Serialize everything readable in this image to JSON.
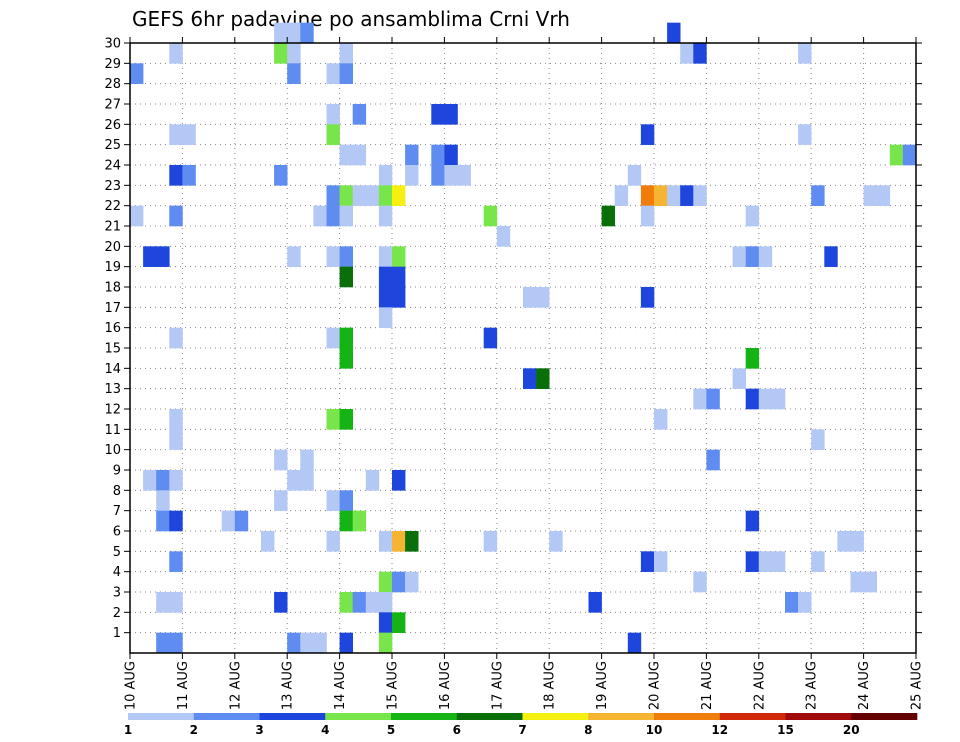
{
  "chart_data": {
    "type": "heatmap",
    "title": "GEFS 6hr padavine po ansamblima Crni Vrh",
    "y_ticks": [
      "1",
      "2",
      "3",
      "4",
      "5",
      "6",
      "7",
      "8",
      "9",
      "10",
      "11",
      "12",
      "13",
      "14",
      "15",
      "16",
      "17",
      "18",
      "19",
      "20",
      "21",
      "22",
      "23",
      "24",
      "25",
      "26",
      "27",
      "28",
      "29",
      "30"
    ],
    "ylim": [
      0,
      30
    ],
    "x_ticks": [
      "10 AUG",
      "11 AUG",
      "12 AUG",
      "13 AUG",
      "14 AUG",
      "15 AUG",
      "16 AUG",
      "17 AUG",
      "18 AUG",
      "19 AUG",
      "20 AUG",
      "21 AUG",
      "22 AUG",
      "23 AUG",
      "24 AUG",
      "25 AUG"
    ],
    "xlim": [
      0,
      60
    ],
    "grid": true,
    "colorbar": {
      "levels": [
        "1",
        "2",
        "3",
        "4",
        "5",
        "6",
        "7",
        "8",
        "10",
        "12",
        "15",
        "20"
      ],
      "colors": [
        "#b4c8f5",
        "#5f8cf0",
        "#1e46dc",
        "#78e64b",
        "#14b414",
        "#0a6e0a",
        "#f5f00f",
        "#f5b432",
        "#f07d0a",
        "#d2280a",
        "#a00a0a",
        "#640000"
      ]
    },
    "cells": [
      [
        0,
        28,
        2
      ],
      [
        0,
        21,
        1
      ],
      [
        1,
        8,
        1
      ],
      [
        1,
        19,
        3
      ],
      [
        2,
        19,
        3
      ],
      [
        2,
        8,
        2
      ],
      [
        2,
        7,
        1
      ],
      [
        2,
        6,
        2
      ],
      [
        2,
        2,
        1
      ],
      [
        2,
        0,
        2
      ],
      [
        3,
        29,
        1
      ],
      [
        3,
        25,
        1
      ],
      [
        3,
        15,
        1
      ],
      [
        3,
        23,
        3
      ],
      [
        3,
        21,
        2
      ],
      [
        3,
        11,
        1
      ],
      [
        3,
        10,
        1
      ],
      [
        3,
        8,
        1
      ],
      [
        3,
        6,
        3
      ],
      [
        3,
        4,
        2
      ],
      [
        3,
        2,
        1
      ],
      [
        3,
        0,
        2
      ],
      [
        4,
        25,
        1
      ],
      [
        4,
        23,
        2
      ],
      [
        7,
        6,
        1
      ],
      [
        8,
        6,
        2
      ],
      [
        10,
        5,
        1
      ],
      [
        11,
        30,
        1
      ],
      [
        11,
        29,
        4
      ],
      [
        11,
        23,
        2
      ],
      [
        11,
        9,
        1
      ],
      [
        11,
        7,
        1
      ],
      [
        11,
        2,
        3
      ],
      [
        12,
        30,
        1
      ],
      [
        12,
        29,
        1
      ],
      [
        12,
        28,
        2
      ],
      [
        12,
        19,
        1
      ],
      [
        12,
        8,
        1
      ],
      [
        12,
        0,
        2
      ],
      [
        13,
        30,
        2
      ],
      [
        13,
        8,
        1
      ],
      [
        13,
        9,
        1
      ],
      [
        13,
        0,
        1
      ],
      [
        14,
        21,
        1
      ],
      [
        14,
        0,
        1
      ],
      [
        15,
        28,
        1
      ],
      [
        15,
        26,
        1
      ],
      [
        15,
        25,
        4
      ],
      [
        15,
        22,
        2
      ],
      [
        15,
        21,
        2
      ],
      [
        15,
        19,
        1
      ],
      [
        15,
        15,
        1
      ],
      [
        15,
        11,
        4
      ],
      [
        15,
        7,
        1
      ],
      [
        15,
        5,
        1
      ],
      [
        16,
        29,
        1
      ],
      [
        16,
        28,
        2
      ],
      [
        16,
        24,
        1
      ],
      [
        16,
        22,
        4
      ],
      [
        16,
        21,
        1
      ],
      [
        16,
        19,
        2
      ],
      [
        16,
        18,
        6
      ],
      [
        16,
        15,
        5
      ],
      [
        16,
        14,
        5
      ],
      [
        16,
        11,
        5
      ],
      [
        16,
        7,
        2
      ],
      [
        16,
        6,
        5
      ],
      [
        16,
        2,
        4
      ],
      [
        16,
        0,
        3
      ],
      [
        17,
        26,
        2
      ],
      [
        17,
        24,
        1
      ],
      [
        17,
        22,
        1
      ],
      [
        17,
        6,
        4
      ],
      [
        17,
        2,
        2
      ],
      [
        18,
        22,
        1
      ],
      [
        18,
        2,
        1
      ],
      [
        18,
        8,
        1
      ],
      [
        19,
        23,
        1
      ],
      [
        19,
        22,
        4
      ],
      [
        19,
        21,
        1
      ],
      [
        19,
        19,
        1
      ],
      [
        19,
        18,
        3
      ],
      [
        19,
        17,
        3
      ],
      [
        19,
        16,
        1
      ],
      [
        19,
        5,
        1
      ],
      [
        19,
        3,
        4
      ],
      [
        19,
        2,
        1
      ],
      [
        19,
        1,
        3
      ],
      [
        19,
        0,
        4
      ],
      [
        20,
        22,
        7
      ],
      [
        20,
        19,
        4
      ],
      [
        20,
        18,
        3
      ],
      [
        20,
        17,
        3
      ],
      [
        20,
        8,
        3
      ],
      [
        20,
        5,
        8
      ],
      [
        20,
        3,
        2
      ],
      [
        20,
        1,
        5
      ],
      [
        21,
        24,
        2
      ],
      [
        21,
        23,
        1
      ],
      [
        21,
        5,
        6
      ],
      [
        21,
        3,
        1
      ],
      [
        23,
        26,
        3
      ],
      [
        23,
        24,
        2
      ],
      [
        23,
        23,
        2
      ],
      [
        24,
        26,
        3
      ],
      [
        24,
        24,
        3
      ],
      [
        24,
        23,
        1
      ],
      [
        25,
        23,
        1
      ],
      [
        27,
        21,
        4
      ],
      [
        27,
        15,
        3
      ],
      [
        27,
        5,
        1
      ],
      [
        28,
        20,
        1
      ],
      [
        30,
        13,
        3
      ],
      [
        30,
        17,
        1
      ],
      [
        31,
        17,
        1
      ],
      [
        31,
        13,
        6
      ],
      [
        32,
        5,
        1
      ],
      [
        35,
        2,
        3
      ],
      [
        36,
        21,
        6
      ],
      [
        37,
        22,
        1
      ],
      [
        38,
        23,
        1
      ],
      [
        38,
        0,
        3
      ],
      [
        39,
        25,
        3
      ],
      [
        39,
        22,
        9
      ],
      [
        39,
        21,
        1
      ],
      [
        39,
        17,
        3
      ],
      [
        39,
        4,
        3
      ],
      [
        40,
        22,
        8
      ],
      [
        40,
        11,
        1
      ],
      [
        40,
        4,
        1
      ],
      [
        41,
        30,
        3
      ],
      [
        41,
        22,
        1
      ],
      [
        42,
        29,
        1
      ],
      [
        42,
        22,
        3
      ],
      [
        43,
        29,
        3
      ],
      [
        43,
        22,
        1
      ],
      [
        43,
        12,
        1
      ],
      [
        43,
        3,
        1
      ],
      [
        44,
        12,
        2
      ],
      [
        44,
        9,
        2
      ],
      [
        46,
        19,
        1
      ],
      [
        46,
        13,
        1
      ],
      [
        47,
        21,
        1
      ],
      [
        47,
        19,
        2
      ],
      [
        47,
        14,
        5
      ],
      [
        47,
        12,
        3
      ],
      [
        47,
        6,
        3
      ],
      [
        47,
        4,
        3
      ],
      [
        48,
        19,
        1
      ],
      [
        48,
        12,
        1
      ],
      [
        48,
        4,
        1
      ],
      [
        49,
        12,
        1
      ],
      [
        49,
        4,
        1
      ],
      [
        50,
        2,
        2
      ],
      [
        51,
        29,
        1
      ],
      [
        51,
        25,
        1
      ],
      [
        51,
        2,
        1
      ],
      [
        52,
        22,
        2
      ],
      [
        52,
        10,
        1
      ],
      [
        52,
        4,
        1
      ],
      [
        53,
        19,
        3
      ],
      [
        54,
        5,
        1
      ],
      [
        55,
        5,
        1
      ],
      [
        55,
        3,
        1
      ],
      [
        56,
        22,
        1
      ],
      [
        56,
        3,
        1
      ],
      [
        57,
        22,
        1
      ],
      [
        58,
        24,
        4
      ],
      [
        59,
        24,
        2
      ]
    ]
  }
}
